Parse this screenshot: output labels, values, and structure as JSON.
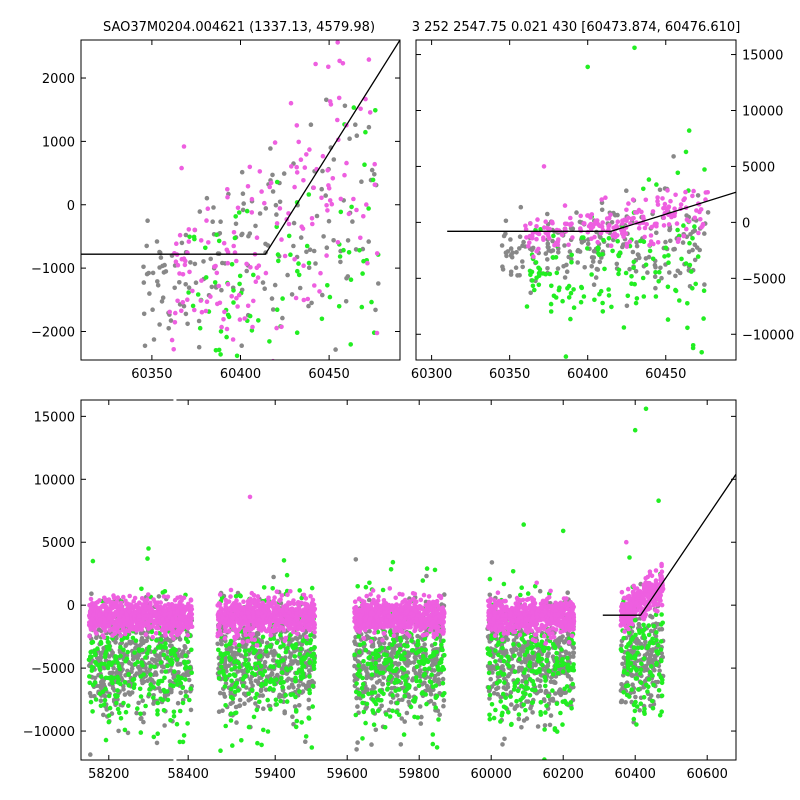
{
  "titles": {
    "left": "SAO37M0204.004621 (1337.13, 4579.98)",
    "right": "3 252 2547.75 0.021 430 [60473.874, 60476.610]"
  },
  "colors": {
    "magenta": "#ee5fe0",
    "green": "#22ee22",
    "gray": "#888888",
    "line": "#000000"
  },
  "chart_data": [
    {
      "id": "top-left",
      "type": "scatter",
      "title": "SAO37M0204.004621 (1337.13, 4579.98)",
      "xlim": [
        60310,
        60490
      ],
      "ylim": [
        -2450,
        2600
      ],
      "xticks": [
        60350,
        60400,
        60450
      ],
      "yticks": [
        -2000,
        -1000,
        0,
        1000,
        2000
      ],
      "yaxis_side": "left",
      "grid": false,
      "series": [
        {
          "color": "magenta",
          "x_range": [
            60360,
            60478
          ],
          "center": [
            -1300,
            500
          ],
          "spread": 900,
          "trend": 25,
          "n": 170,
          "seed": 11
        },
        {
          "color": "gray",
          "x_range": [
            60345,
            60478
          ],
          "center": [
            -1200,
            -300
          ],
          "spread": 800,
          "trend": 10,
          "n": 170,
          "seed": 12
        },
        {
          "color": "green",
          "x_range": [
            60370,
            60478
          ],
          "center": [
            -1500,
            -1000
          ],
          "spread": 900,
          "trend": 8,
          "n": 90,
          "seed": 13
        }
      ],
      "model_line": [
        [
          60310,
          -780
        ],
        [
          60414,
          -780
        ],
        [
          60490,
          2600
        ]
      ]
    },
    {
      "id": "top-right",
      "type": "scatter",
      "title": "3 252 2547.75 0.021 430 [60473.874, 60476.610]",
      "xlim": [
        60290,
        60495
      ],
      "ylim": [
        -12300,
        16300
      ],
      "xticks": [
        60300,
        60350,
        60400,
        60450
      ],
      "yticks": [
        -10000,
        -5000,
        0,
        5000,
        10000,
        15000
      ],
      "yaxis_side": "right",
      "grid": false,
      "series": [
        {
          "color": "magenta",
          "x_range": [
            60360,
            60478
          ],
          "center": [
            -1200,
            1000
          ],
          "spread": 1000,
          "trend": 5,
          "n": 200,
          "seed": 21
        },
        {
          "color": "gray",
          "x_range": [
            60345,
            60478
          ],
          "center": [
            -2600,
            -1800
          ],
          "spread": 1800,
          "trend": 2,
          "n": 220,
          "seed": 22
        },
        {
          "color": "green",
          "x_range": [
            60360,
            60475
          ],
          "center": [
            -4200,
            -3500
          ],
          "spread": 2600,
          "trend": 0,
          "n": 140,
          "seed": 23
        }
      ],
      "outliers": [
        {
          "x": 60430,
          "y": 15600,
          "color": "green"
        },
        {
          "x": 60400,
          "y": 13900,
          "color": "green"
        },
        {
          "x": 60465,
          "y": 8200,
          "color": "green"
        },
        {
          "x": 60463,
          "y": 6300,
          "color": "green"
        },
        {
          "x": 60372,
          "y": 5000,
          "color": "magenta"
        },
        {
          "x": 60455,
          "y": 5900,
          "color": "gray"
        },
        {
          "x": 60386,
          "y": -12000,
          "color": "green"
        }
      ],
      "model_line": [
        [
          60310,
          -800
        ],
        [
          60415,
          -800
        ],
        [
          60495,
          2700
        ]
      ]
    },
    {
      "id": "bottom",
      "type": "scatter",
      "xlim": [
        58130,
        60680
      ],
      "ylim": [
        -12300,
        16300
      ],
      "xticks": [
        58200,
        58400,
        59400,
        59600,
        59800,
        60000,
        60200,
        60400,
        60600
      ],
      "yticks": [
        -10000,
        -5000,
        0,
        5000,
        10000,
        15000
      ],
      "yaxis_side": "left",
      "grid": false,
      "axis_break": [
        58460,
        59230
      ],
      "seasons": [
        {
          "x_range": [
            58150,
            58410
          ],
          "seed": 31
        },
        {
          "x_range": [
            59240,
            59510
          ],
          "seed": 32
        },
        {
          "x_range": [
            59620,
            59870
          ],
          "seed": 33
        },
        {
          "x_range": [
            59990,
            60230
          ],
          "seed": 34
        },
        {
          "x_range": [
            60360,
            60478
          ],
          "seed": 35
        }
      ],
      "outliers": [
        {
          "x": 59330,
          "y": 8600,
          "color": "magenta"
        },
        {
          "x": 58300,
          "y": 4500,
          "color": "green"
        },
        {
          "x": 58160,
          "y": 3500,
          "color": "green"
        },
        {
          "x": 60090,
          "y": 6400,
          "color": "green"
        },
        {
          "x": 60200,
          "y": 5900,
          "color": "green"
        },
        {
          "x": 60430,
          "y": 15600,
          "color": "green"
        },
        {
          "x": 60400,
          "y": 13900,
          "color": "green"
        },
        {
          "x": 60465,
          "y": 8300,
          "color": "green"
        },
        {
          "x": 60375,
          "y": 5000,
          "color": "magenta"
        }
      ],
      "model_line": [
        [
          60310,
          -800
        ],
        [
          60415,
          -800
        ],
        [
          60680,
          10400
        ]
      ]
    }
  ]
}
